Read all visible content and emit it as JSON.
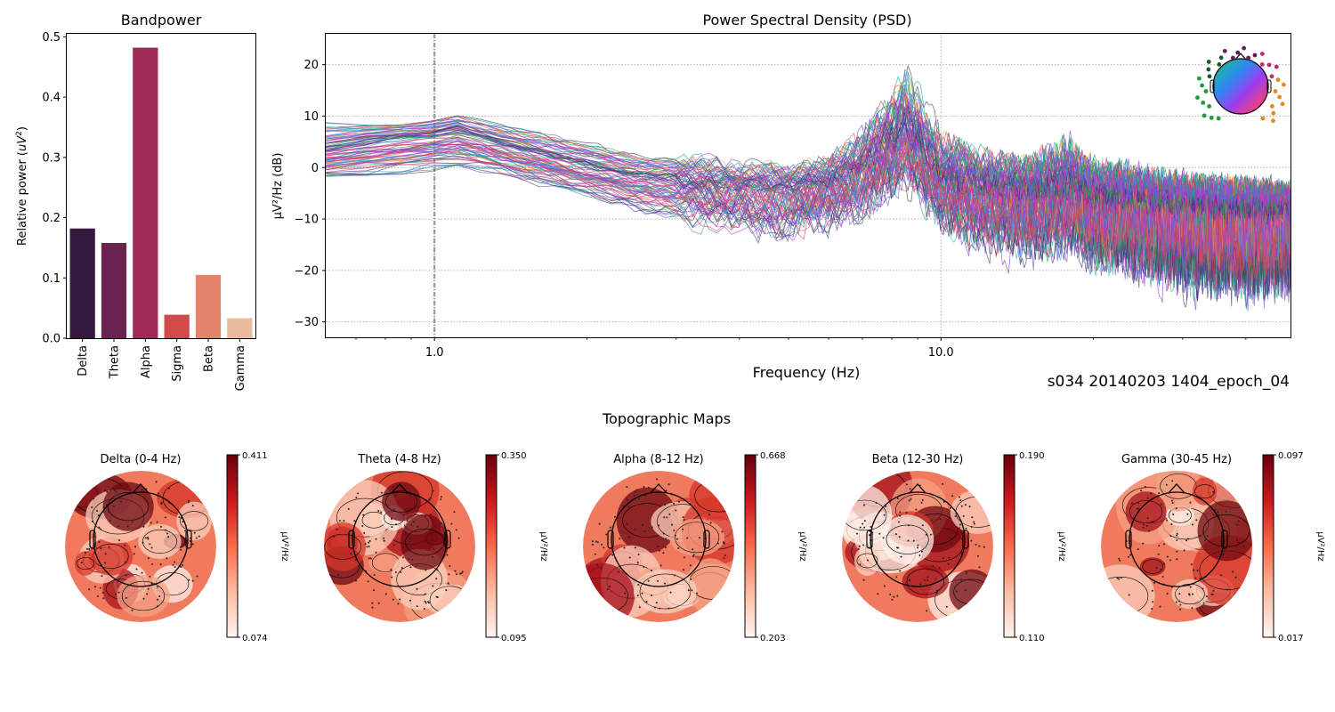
{
  "chart_data": [
    {
      "type": "bar",
      "title": "Bandpower",
      "xlabel": "",
      "ylabel": "Relative power (uV²)",
      "categories": [
        "Delta",
        "Theta",
        "Alpha",
        "Sigma",
        "Beta",
        "Gamma"
      ],
      "values": [
        0.182,
        0.158,
        0.482,
        0.039,
        0.105,
        0.033
      ],
      "colors": [
        "#35193e",
        "#6b2350",
        "#a02956",
        "#d24a4c",
        "#e3836a",
        "#ebb99b"
      ],
      "ylim": [
        0,
        0.505
      ],
      "yticks": [
        "0.0",
        "0.1",
        "0.2",
        "0.3",
        "0.4",
        "0.5"
      ],
      "ytick_values": [
        0,
        0.1,
        0.2,
        0.3,
        0.4,
        0.5
      ],
      "grid": false
    },
    {
      "type": "line",
      "title": "Power Spectral Density (PSD)",
      "xlabel": "Frequency (Hz)",
      "ylabel": "µV²/Hz (dB)",
      "xscale": "log",
      "xlim": [
        0.61,
        49
      ],
      "ylim": [
        -33,
        26
      ],
      "xticks": [
        "1.0",
        "10.0"
      ],
      "xtick_values": [
        1,
        10
      ],
      "yticks": [
        "−30",
        "−20",
        "−10",
        "0",
        "10",
        "20"
      ],
      "ytick_values": [
        -30,
        -20,
        -10,
        0,
        10,
        20
      ],
      "grid": true,
      "vline_x": 1.0,
      "legend": "sensor-position-inset top-right (one trace per EEG channel, colored by scalp location)",
      "series_summary": {
        "description": "Approx. envelope of ~250 channel traces (dB)",
        "freqs": [
          0.61,
          0.8,
          1.0,
          1.1,
          1.5,
          2.0,
          2.5,
          3.0,
          4.0,
          5.0,
          6.0,
          7.0,
          8.0,
          8.5,
          9.0,
          10.0,
          12.0,
          15.0,
          18.0,
          20.0,
          25.0,
          30.0,
          40.0,
          49.0
        ],
        "median": [
          3,
          5,
          6,
          7,
          3,
          0,
          -2,
          -3,
          -4,
          -4,
          -3,
          0,
          5,
          7,
          5,
          -2,
          -4,
          -5,
          -4,
          -6,
          -7,
          -8,
          -9,
          -9
        ],
        "upper": [
          12,
          11,
          11,
          12,
          10,
          8,
          5,
          5,
          3,
          2,
          4,
          10,
          18,
          23,
          19,
          10,
          6,
          5,
          9,
          4,
          3,
          1,
          0,
          -1
        ],
        "lower": [
          -5,
          -5,
          -4,
          -4,
          -6,
          -9,
          -12,
          -14,
          -16,
          -17,
          -15,
          -13,
          -10,
          -8,
          -11,
          -16,
          -20,
          -22,
          -20,
          -24,
          -26,
          -28,
          -30,
          -28
        ]
      }
    },
    {
      "type": "heatmap",
      "title": "Topographic Maps",
      "colormap": "Reds",
      "colorbar_label": "µV²/Hz",
      "maps": [
        {
          "title": "Delta (0-4 Hz)",
          "vmin": "0.074",
          "vmax": "0.411"
        },
        {
          "title": "Theta (4-8 Hz)",
          "vmin": "0.095",
          "vmax": "0.350"
        },
        {
          "title": "Alpha (8-12 Hz)",
          "vmin": "0.203",
          "vmax": "0.668"
        },
        {
          "title": "Beta (12-30 Hz)",
          "vmin": "0.110",
          "vmax": "0.190"
        },
        {
          "title": "Gamma (30-45 Hz)",
          "vmin": "0.017",
          "vmax": "0.097"
        }
      ]
    }
  ],
  "figure": {
    "epoch_label": "s034 20140203 1404_epoch_04"
  }
}
